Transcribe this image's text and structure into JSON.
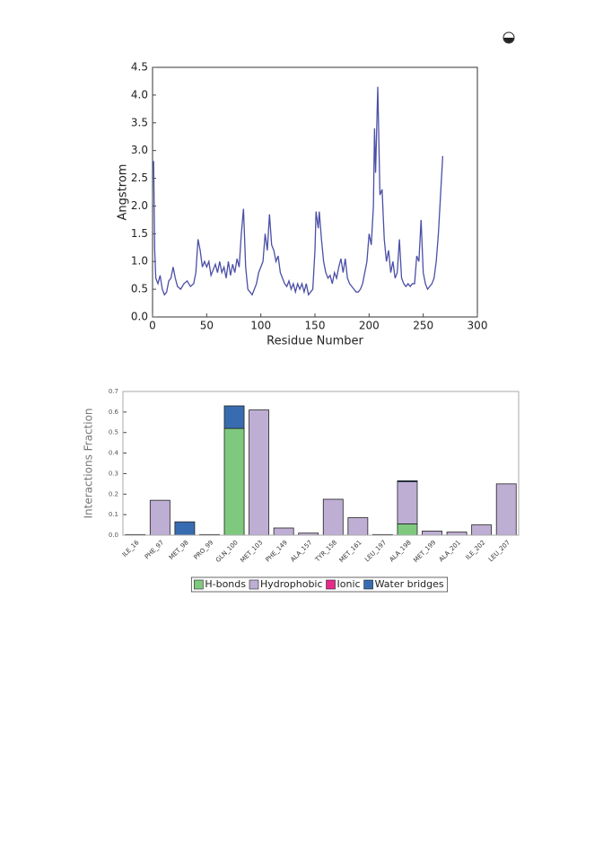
{
  "chart_data": [
    {
      "type": "line",
      "x_label": "Residue Number",
      "y_label": "Angstrom",
      "xlim": [
        0,
        300
      ],
      "xticks": [
        0,
        50,
        100,
        150,
        200,
        250,
        300
      ],
      "ylim": [
        0,
        4.5
      ],
      "yticks": [
        {
          "value": 0,
          "label": "0.0"
        },
        0.5,
        {
          "value": 1,
          "label": "1.0"
        },
        1.5,
        {
          "value": 2,
          "label": "2.0"
        },
        2.5,
        {
          "value": 3,
          "label": "3.0"
        },
        3.5,
        {
          "value": 4,
          "label": "4.0"
        },
        4.5
      ],
      "grid": false,
      "color": "#4b4fa6",
      "x": [
        0,
        1,
        2,
        3,
        5,
        7,
        9,
        11,
        13,
        15,
        17,
        19,
        21,
        23,
        26,
        29,
        32,
        35,
        38,
        40,
        42,
        44,
        46,
        48,
        50,
        52,
        54,
        56,
        58,
        60,
        62,
        64,
        66,
        68,
        70,
        72,
        74,
        76,
        78,
        80,
        82,
        84,
        86,
        88,
        90,
        92,
        94,
        96,
        98,
        100,
        102,
        104,
        106,
        108,
        110,
        112,
        114,
        116,
        118,
        120,
        122,
        124,
        126,
        128,
        130,
        132,
        134,
        136,
        138,
        140,
        142,
        144,
        146,
        148,
        150,
        151,
        153,
        154,
        156,
        158,
        160,
        162,
        164,
        166,
        168,
        170,
        172,
        174,
        176,
        178,
        180,
        182,
        184,
        186,
        188,
        190,
        192,
        194,
        196,
        198,
        200,
        202,
        204,
        205,
        206,
        208,
        209,
        210,
        212,
        214,
        216,
        218,
        220,
        222,
        224,
        226,
        228,
        230,
        232,
        234,
        236,
        238,
        240,
        242,
        244,
        246,
        248,
        250,
        252,
        254,
        256,
        258,
        260,
        262,
        264,
        266,
        268
      ],
      "values": [
        2.8,
        2.8,
        1.2,
        0.7,
        0.6,
        0.75,
        0.5,
        0.4,
        0.45,
        0.65,
        0.7,
        0.9,
        0.7,
        0.55,
        0.5,
        0.6,
        0.65,
        0.55,
        0.6,
        0.8,
        1.4,
        1.2,
        0.9,
        1.0,
        0.9,
        1.0,
        0.75,
        0.85,
        0.95,
        0.8,
        1.0,
        0.8,
        0.9,
        0.7,
        1.0,
        0.75,
        0.95,
        0.8,
        1.05,
        0.9,
        1.5,
        1.95,
        0.9,
        0.5,
        0.45,
        0.4,
        0.5,
        0.6,
        0.8,
        0.9,
        1.0,
        1.5,
        1.2,
        1.85,
        1.3,
        1.2,
        1.0,
        1.1,
        0.8,
        0.7,
        0.6,
        0.55,
        0.65,
        0.5,
        0.6,
        0.45,
        0.6,
        0.5,
        0.6,
        0.45,
        0.6,
        0.4,
        0.45,
        0.5,
        1.2,
        1.9,
        1.6,
        1.9,
        1.4,
        1.0,
        0.8,
        0.7,
        0.75,
        0.6,
        0.8,
        0.7,
        0.9,
        1.05,
        0.8,
        1.05,
        0.7,
        0.6,
        0.55,
        0.5,
        0.45,
        0.45,
        0.5,
        0.6,
        0.8,
        1.0,
        1.5,
        1.3,
        2.0,
        3.4,
        2.6,
        4.15,
        3.2,
        2.2,
        2.3,
        1.4,
        1.0,
        1.2,
        0.8,
        1.0,
        0.7,
        0.8,
        1.4,
        0.7,
        0.6,
        0.55,
        0.6,
        0.55,
        0.6,
        0.6,
        1.1,
        1.0,
        1.75,
        0.8,
        0.6,
        0.5,
        0.55,
        0.6,
        0.7,
        1.0,
        1.5,
        2.2,
        2.9
      ]
    },
    {
      "type": "bar",
      "stacked": true,
      "y_label": "Interactions Fraction",
      "ylim": [
        0,
        0.7
      ],
      "yticks": [
        {
          "value": 0,
          "label": "0.0"
        },
        0.1,
        0.2,
        0.3,
        0.4,
        0.5,
        0.6,
        0.7
      ],
      "grid": false,
      "legend": "bottom",
      "categories": [
        "ILE_16",
        "PHE_97",
        "MET_98",
        "PRO_99",
        "GLN_100",
        "MET_103",
        "PHE_149",
        "ALA_157",
        "TYR_158",
        "MET_161",
        "LEU_197",
        "ALA_198",
        "MET_199",
        "ALA_201",
        "ILE_202",
        "LEU_207"
      ],
      "series": [
        {
          "name": "H-bonds",
          "color": "#7ec97e",
          "values": [
            0,
            0,
            0,
            0,
            0.52,
            0,
            0,
            0,
            0,
            0,
            0,
            0.055,
            0,
            0,
            0,
            0
          ]
        },
        {
          "name": "Hydrophobic",
          "color": "#beaed4",
          "values": [
            0.003,
            0.17,
            0,
            0.003,
            0,
            0.61,
            0.035,
            0.01,
            0.175,
            0.085,
            0.003,
            0.205,
            0.02,
            0.015,
            0.05,
            0.25
          ]
        },
        {
          "name": "Ionic",
          "color": "#e7298a",
          "values": [
            0,
            0,
            0,
            0,
            0,
            0,
            0,
            0,
            0,
            0,
            0,
            0,
            0,
            0,
            0,
            0
          ]
        },
        {
          "name": "Water bridges",
          "color": "#386cb0",
          "values": [
            0,
            0,
            0.065,
            0,
            0.11,
            0,
            0,
            0,
            0,
            0,
            0,
            0.005,
            0,
            0,
            0,
            0
          ]
        }
      ]
    }
  ]
}
